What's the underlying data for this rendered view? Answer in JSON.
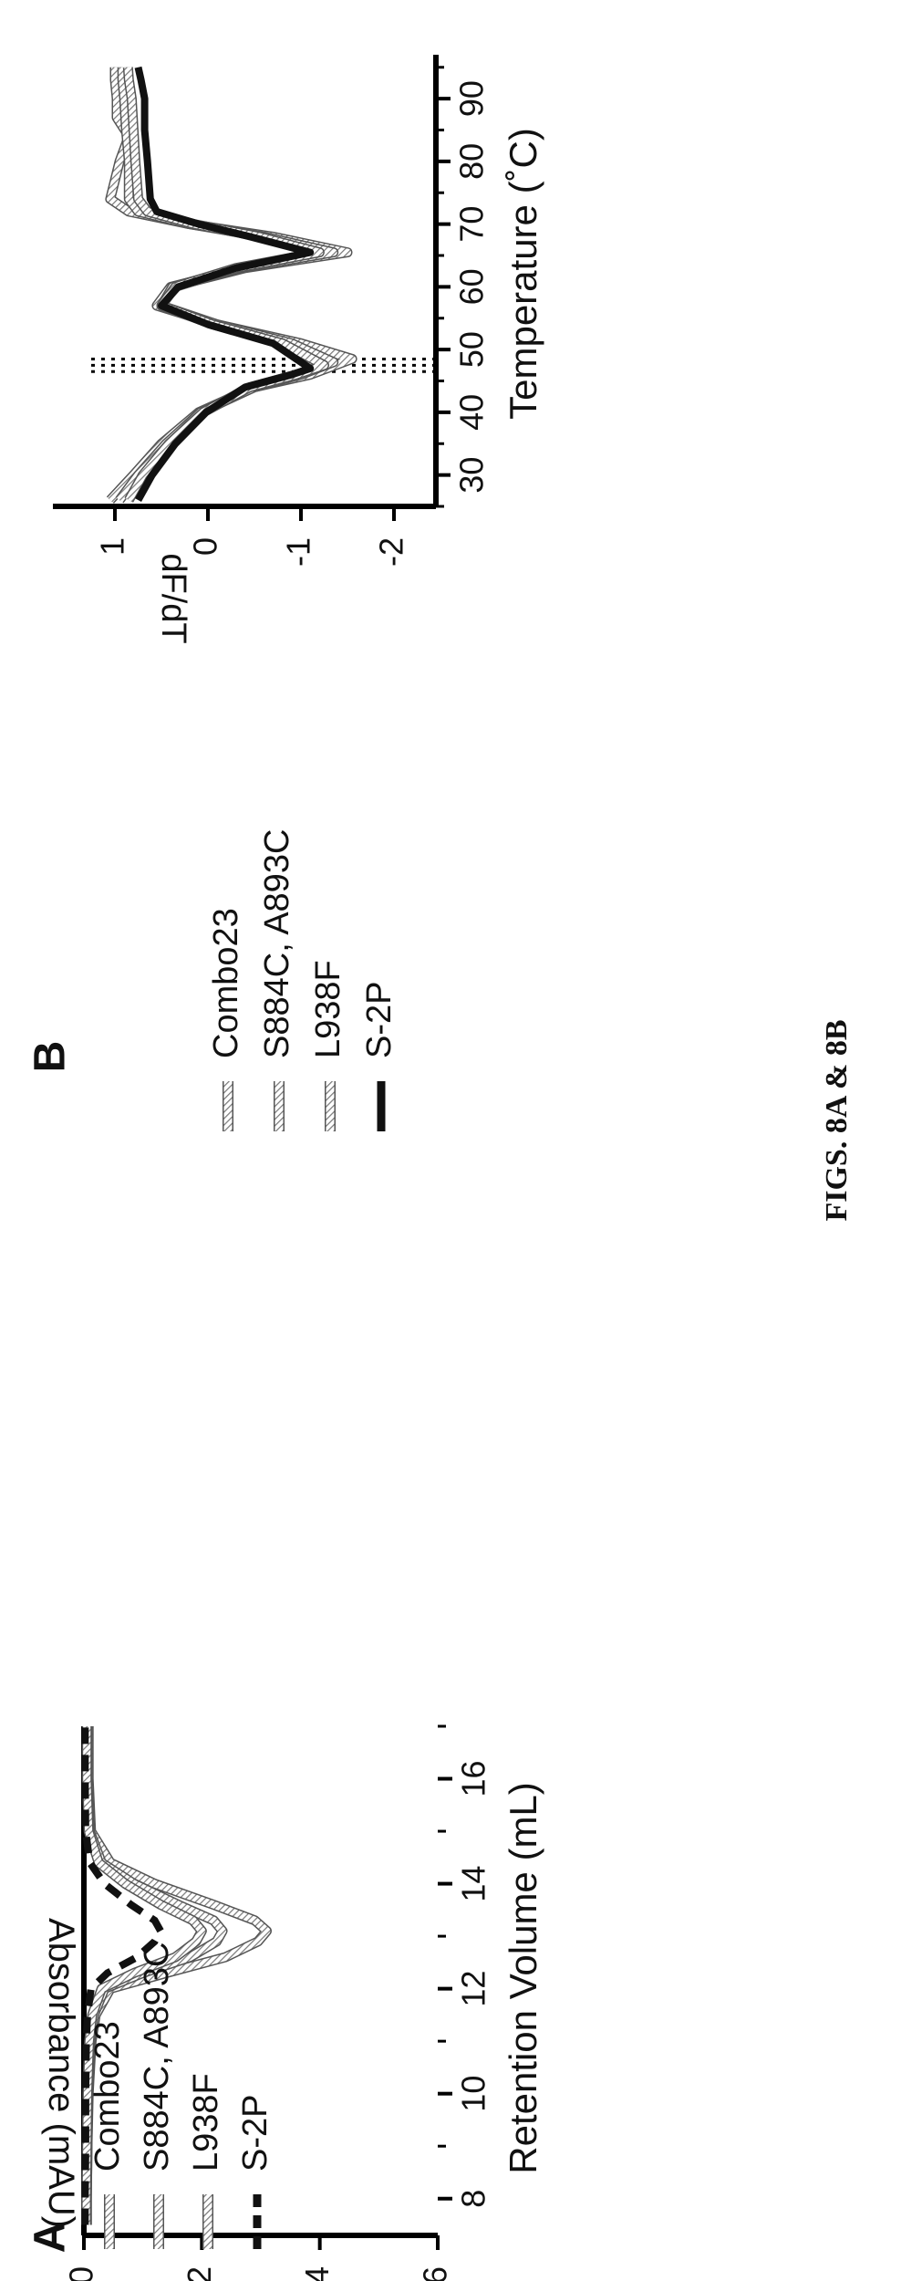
{
  "caption": "FIGS. 8A & 8B",
  "chart_data": [
    {
      "panel": "A",
      "type": "line",
      "xlabel": "Retention Volume (mL)",
      "ylabel": "Absorbance (mAU)",
      "xlim": [
        7.3,
        17
      ],
      "ylim": [
        0,
        6
      ],
      "xticks": [
        8,
        10,
        12,
        14,
        16
      ],
      "yticks": [
        0,
        2,
        4,
        6
      ],
      "grid": false,
      "legend_position": "top-left",
      "series": [
        {
          "name": "Combo23",
          "style": "hatched",
          "x": [
            7.5,
            8,
            9,
            10,
            11,
            11.5,
            12,
            12.3,
            12.6,
            12.9,
            13.1,
            13.3,
            13.6,
            14,
            14.4,
            15,
            16,
            17
          ],
          "y": [
            0.05,
            0.05,
            0.06,
            0.08,
            0.13,
            0.2,
            0.45,
            1.4,
            2.4,
            2.95,
            3.1,
            2.9,
            2.2,
            1.2,
            0.45,
            0.12,
            0.08,
            0.08
          ]
        },
        {
          "name": "S884C, A893C",
          "style": "hatched",
          "x": [
            7.5,
            8,
            9,
            10,
            11,
            11.5,
            12,
            12.3,
            12.6,
            12.9,
            13.1,
            13.3,
            13.6,
            14,
            14.4,
            15,
            16,
            17
          ],
          "y": [
            0.05,
            0.05,
            0.06,
            0.07,
            0.11,
            0.17,
            0.35,
            1.0,
            1.8,
            2.25,
            2.35,
            2.2,
            1.6,
            0.85,
            0.3,
            0.1,
            0.06,
            0.06
          ]
        },
        {
          "name": "L938F",
          "style": "hatched",
          "x": [
            7.5,
            8,
            9,
            10,
            11,
            11.5,
            12,
            12.3,
            12.6,
            12.9,
            13.1,
            13.3,
            13.6,
            14,
            14.4,
            15,
            16,
            17
          ],
          "y": [
            0.04,
            0.04,
            0.05,
            0.06,
            0.09,
            0.14,
            0.3,
            0.85,
            1.55,
            1.9,
            2.0,
            1.85,
            1.3,
            0.7,
            0.25,
            0.08,
            0.05,
            0.05
          ]
        },
        {
          "name": "S-2P",
          "style": "dashed",
          "x": [
            7.5,
            8,
            9,
            10,
            11,
            11.5,
            12,
            12.3,
            12.6,
            12.9,
            13.1,
            13.3,
            13.6,
            14,
            14.4,
            15,
            16,
            17
          ],
          "y": [
            0.02,
            0.02,
            0.03,
            0.03,
            0.04,
            0.06,
            0.12,
            0.4,
            0.9,
            1.2,
            1.3,
            1.2,
            0.8,
            0.35,
            0.1,
            0.03,
            0.02,
            0.02
          ]
        }
      ]
    },
    {
      "panel": "B",
      "type": "line",
      "xlabel": "Temperature (˚C)",
      "ylabel": "dF/dT",
      "xlim": [
        25,
        97
      ],
      "ylim": [
        -2.6,
        1.2
      ],
      "xticks": [
        30,
        40,
        50,
        60,
        70,
        80,
        90
      ],
      "yticks": [
        -2,
        -1,
        0,
        1
      ],
      "grid": false,
      "legend_position": "bottom-right",
      "vlines": [
        46.5,
        47.5,
        48.5
      ],
      "series": [
        {
          "name": "Combo23",
          "style": "hatched",
          "x": [
            26,
            30,
            35,
            40,
            44,
            46,
            48.5,
            51,
            54,
            57,
            60,
            63,
            65.5,
            68,
            70,
            72,
            74,
            80,
            84,
            87,
            90,
            93,
            95
          ],
          "y": [
            1.05,
            0.8,
            0.5,
            0.1,
            -0.5,
            -1.1,
            -1.55,
            -1.0,
            -0.1,
            0.55,
            0.4,
            -0.4,
            -1.5,
            -0.7,
            0.2,
            0.85,
            1.05,
            0.95,
            0.85,
            0.98,
            0.98,
            1.0,
            1.0
          ]
        },
        {
          "name": "S884C, A893C",
          "style": "hatched",
          "x": [
            26,
            30,
            35,
            40,
            44,
            46,
            48,
            51,
            54,
            57,
            60,
            63,
            65.5,
            68,
            70,
            72,
            74,
            80,
            85,
            90,
            93,
            95
          ],
          "y": [
            0.95,
            0.75,
            0.45,
            0.08,
            -0.5,
            -1.0,
            -1.35,
            -0.9,
            -0.1,
            0.5,
            0.38,
            -0.35,
            -1.35,
            -0.6,
            0.2,
            0.75,
            0.85,
            0.85,
            0.88,
            0.9,
            0.92,
            0.92
          ]
        },
        {
          "name": "L938F",
          "style": "hatched",
          "x": [
            26,
            30,
            35,
            40,
            44,
            46,
            47.5,
            51,
            54,
            57,
            60,
            63,
            65.5,
            68,
            70,
            72,
            74,
            80,
            85,
            90,
            93,
            95
          ],
          "y": [
            0.85,
            0.7,
            0.42,
            0.05,
            -0.45,
            -0.95,
            -1.25,
            -0.8,
            -0.05,
            0.5,
            0.35,
            -0.3,
            -1.2,
            -0.55,
            0.15,
            0.65,
            0.75,
            0.78,
            0.8,
            0.82,
            0.85,
            0.86
          ]
        },
        {
          "name": "S-2P",
          "style": "solid",
          "x": [
            26,
            30,
            35,
            40,
            44,
            46,
            47,
            51,
            54,
            57,
            60,
            63,
            65.5,
            68,
            70,
            72,
            74,
            80,
            85,
            90,
            93,
            95
          ],
          "y": [
            0.75,
            0.6,
            0.35,
            0.02,
            -0.4,
            -0.9,
            -1.1,
            -0.7,
            0.0,
            0.5,
            0.32,
            -0.3,
            -1.1,
            -0.45,
            0.1,
            0.55,
            0.62,
            0.65,
            0.68,
            0.68,
            0.72,
            0.75
          ]
        }
      ]
    }
  ]
}
